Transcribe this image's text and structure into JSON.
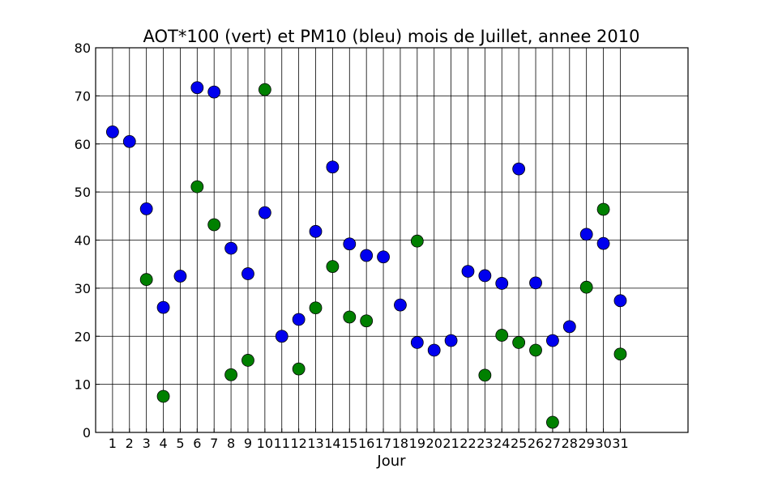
{
  "chart_data": {
    "type": "scatter",
    "title": "AOT*100 (vert) et PM10 (bleu) mois de Juillet, annee 2010",
    "xlabel": "Jour",
    "ylabel": "",
    "xlim": [
      0,
      35
    ],
    "ylim": [
      0,
      80
    ],
    "grid": true,
    "x_ticks": [
      1,
      2,
      3,
      4,
      5,
      6,
      7,
      8,
      9,
      10,
      11,
      12,
      13,
      14,
      15,
      16,
      17,
      18,
      19,
      20,
      21,
      22,
      23,
      24,
      25,
      26,
      27,
      28,
      29,
      30,
      31
    ],
    "y_ticks": [
      0,
      10,
      20,
      30,
      40,
      50,
      60,
      70,
      80
    ],
    "series": [
      {
        "color": "#0000ee",
        "points": [
          [
            1,
            62.5
          ],
          [
            2,
            60.5
          ],
          [
            3,
            46.5
          ],
          [
            4,
            26
          ],
          [
            5,
            32.5
          ],
          [
            6,
            71.7
          ],
          [
            7,
            70.8
          ],
          [
            8,
            38.3
          ],
          [
            9,
            33
          ],
          [
            10,
            45.7
          ],
          [
            11,
            20
          ],
          [
            12,
            23.5
          ],
          [
            13,
            41.8
          ],
          [
            14,
            55.2
          ],
          [
            15,
            39.2
          ],
          [
            16,
            36.8
          ],
          [
            17,
            36.5
          ],
          [
            18,
            26.5
          ],
          [
            19,
            18.7
          ],
          [
            20,
            17.1
          ],
          [
            21,
            19.1
          ],
          [
            22,
            33.5
          ],
          [
            23,
            32.6
          ],
          [
            24,
            31
          ],
          [
            25,
            54.8
          ],
          [
            26,
            31.1
          ],
          [
            27,
            19.1
          ],
          [
            28,
            22
          ],
          [
            29,
            41.2
          ],
          [
            30,
            39.3
          ],
          [
            31,
            27.4
          ]
        ]
      },
      {
        "color": "#008000",
        "points": [
          [
            3,
            31.8
          ],
          [
            4,
            7.5
          ],
          [
            6,
            51.1
          ],
          [
            7,
            43.2
          ],
          [
            8,
            12
          ],
          [
            9,
            15
          ],
          [
            10,
            71.3
          ],
          [
            12,
            13.2
          ],
          [
            13,
            25.9
          ],
          [
            14,
            34.5
          ],
          [
            15,
            24
          ],
          [
            16,
            23.2
          ],
          [
            19,
            39.8
          ],
          [
            23,
            11.9
          ],
          [
            24,
            20.2
          ],
          [
            25,
            18.7
          ],
          [
            26,
            17.1
          ],
          [
            27,
            2.1
          ],
          [
            29,
            30.2
          ],
          [
            30,
            46.4
          ],
          [
            31,
            16.3
          ]
        ]
      }
    ]
  }
}
